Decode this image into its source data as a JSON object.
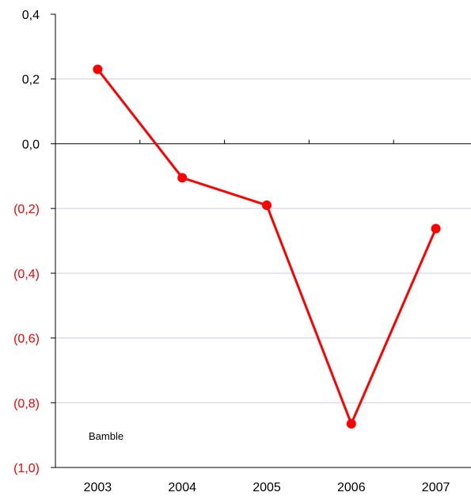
{
  "chart_data": {
    "type": "line",
    "categories": [
      "2003",
      "2004",
      "2005",
      "2006",
      "2007"
    ],
    "series": [
      {
        "name": "Bamble",
        "values": [
          0.23,
          -0.105,
          -0.19,
          -0.865,
          -0.262
        ],
        "color": "#ff0000"
      }
    ],
    "y_ticks": [
      {
        "value": 0.4,
        "label": "0,4",
        "color": "#000000"
      },
      {
        "value": 0.2,
        "label": "0,2",
        "color": "#000000"
      },
      {
        "value": 0.0,
        "label": "0,0",
        "color": "#000000"
      },
      {
        "value": -0.2,
        "label": "(0,2)",
        "color": "#ff0000"
      },
      {
        "value": -0.4,
        "label": "(0,4)",
        "color": "#ff0000"
      },
      {
        "value": -0.6,
        "label": "(0,6)",
        "color": "#ff0000"
      },
      {
        "value": -0.8,
        "label": "(0,8)",
        "color": "#ff0000"
      },
      {
        "value": -1.0,
        "label": "(1,0)",
        "color": "#ff0000"
      }
    ],
    "ylim": [
      -1.0,
      0.4
    ],
    "grid": true,
    "gridline_color": "#ccccee",
    "title": "",
    "xlabel": "",
    "ylabel": ""
  }
}
